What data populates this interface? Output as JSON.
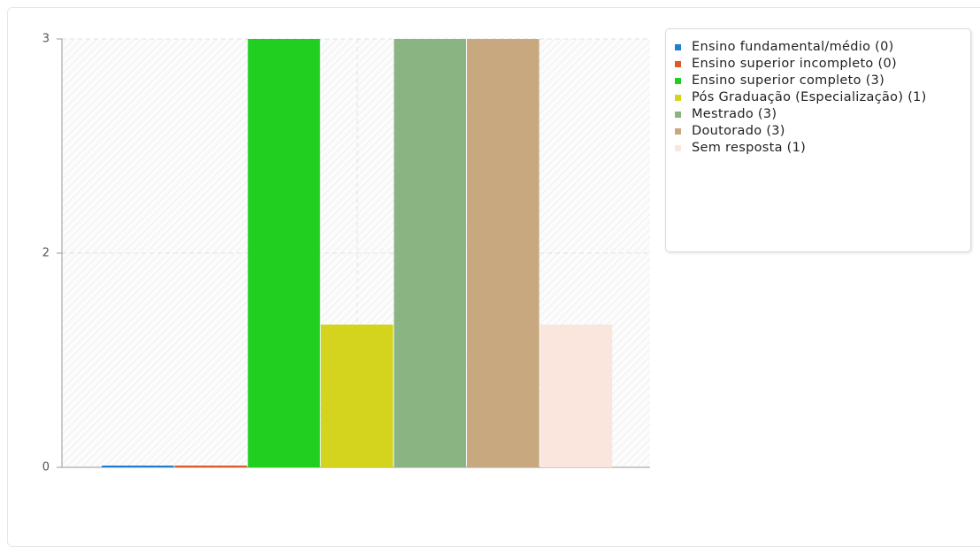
{
  "chart_data": {
    "type": "bar",
    "categories": [
      "Ensino fundamental/médio (0)",
      "Ensino superior incompleto (0)",
      "Ensino superior completo (3)",
      "Pós Graduação (Especialização) (1)",
      "Mestrado (3)",
      "Doutorado (3)",
      "Sem resposta (1)"
    ],
    "values": [
      0,
      0,
      3,
      1,
      3,
      3,
      1
    ],
    "colors": [
      "#1f7fd0",
      "#e0592b",
      "#21cf21",
      "#d4d41e",
      "#8ab583",
      "#c8a97f",
      "#fae6dc"
    ],
    "ylim": [
      0,
      3
    ],
    "yticks": [
      0,
      {
        "value": 1.5,
        "label": "2"
      },
      3
    ],
    "grid": true,
    "legend": "right"
  }
}
